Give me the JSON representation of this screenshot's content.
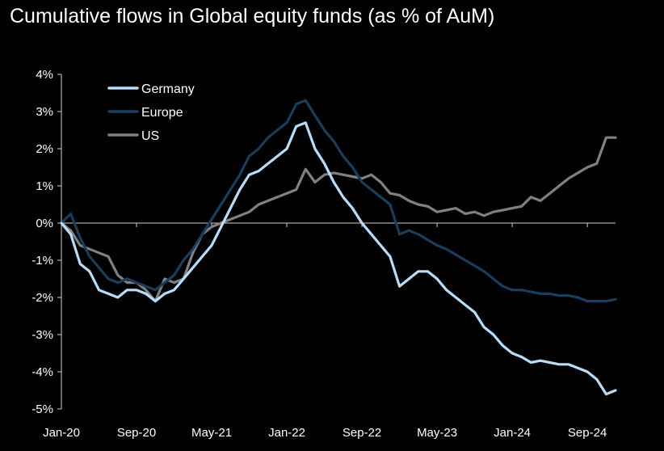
{
  "chart_data": {
    "type": "line",
    "title": "Cumulative flows in Global equity funds (as % of AuM)",
    "xlabel": "",
    "ylabel": "",
    "x_ticks": [
      "Jan-20",
      "Sep-20",
      "May-21",
      "Jan-22",
      "Sep-22",
      "May-23",
      "Jan-24",
      "Sep-24"
    ],
    "y_ticks": [
      "4%",
      "3%",
      "2%",
      "1%",
      "0%",
      "-1%",
      "-2%",
      "-3%",
      "-4%",
      "-5%"
    ],
    "ylim": [
      -5,
      4
    ],
    "x_unit": "month",
    "x_start": "Jan-20",
    "legend_position": "top-left",
    "grid": false,
    "series": [
      {
        "name": "Germany",
        "color": "#b9dcf7",
        "values": [
          0.0,
          -0.3,
          -1.1,
          -1.3,
          -1.8,
          -1.9,
          -2.0,
          -1.8,
          -1.8,
          -1.9,
          -2.1,
          -1.9,
          -1.8,
          -1.5,
          -1.2,
          -0.9,
          -0.6,
          -0.1,
          0.4,
          0.9,
          1.3,
          1.4,
          1.6,
          1.8,
          2.0,
          2.6,
          2.7,
          2.0,
          1.6,
          1.1,
          0.7,
          0.4,
          0.0,
          -0.3,
          -0.6,
          -0.9,
          -1.7,
          -1.5,
          -1.3,
          -1.3,
          -1.5,
          -1.8,
          -2.0,
          -2.2,
          -2.4,
          -2.8,
          -3.0,
          -3.3,
          -3.5,
          -3.6,
          -3.75,
          -3.7,
          -3.75,
          -3.8,
          -3.8,
          -3.9,
          -4.0,
          -4.2,
          -4.6,
          -4.5
        ]
      },
      {
        "name": "Europe",
        "color": "#1a3d5c",
        "values": [
          0.0,
          0.25,
          -0.4,
          -0.9,
          -1.2,
          -1.5,
          -1.6,
          -1.5,
          -1.6,
          -1.7,
          -1.8,
          -1.6,
          -1.4,
          -1.0,
          -0.7,
          -0.3,
          0.1,
          0.5,
          0.9,
          1.3,
          1.8,
          2.0,
          2.3,
          2.5,
          2.7,
          3.2,
          3.3,
          2.9,
          2.5,
          2.2,
          1.8,
          1.5,
          1.1,
          0.9,
          0.7,
          0.5,
          -0.3,
          -0.2,
          -0.3,
          -0.45,
          -0.6,
          -0.7,
          -0.85,
          -1.0,
          -1.15,
          -1.3,
          -1.5,
          -1.7,
          -1.8,
          -1.8,
          -1.85,
          -1.9,
          -1.9,
          -1.95,
          -1.95,
          -2.0,
          -2.1,
          -2.1,
          -2.1,
          -2.05
        ]
      },
      {
        "name": "US",
        "color": "#808080",
        "values": [
          0.0,
          -0.2,
          -0.6,
          -0.7,
          -0.8,
          -0.9,
          -1.4,
          -1.6,
          -1.6,
          -1.8,
          -2.1,
          -1.5,
          -1.6,
          -1.5,
          -0.8,
          -0.3,
          -0.1,
          0.0,
          0.1,
          0.2,
          0.3,
          0.5,
          0.6,
          0.7,
          0.8,
          0.9,
          1.45,
          1.1,
          1.3,
          1.35,
          1.3,
          1.25,
          1.2,
          1.3,
          1.1,
          0.8,
          0.75,
          0.6,
          0.5,
          0.45,
          0.3,
          0.35,
          0.4,
          0.25,
          0.3,
          0.2,
          0.3,
          0.35,
          0.4,
          0.45,
          0.7,
          0.6,
          0.8,
          1.0,
          1.2,
          1.35,
          1.5,
          1.6,
          2.3,
          2.3
        ]
      }
    ]
  }
}
